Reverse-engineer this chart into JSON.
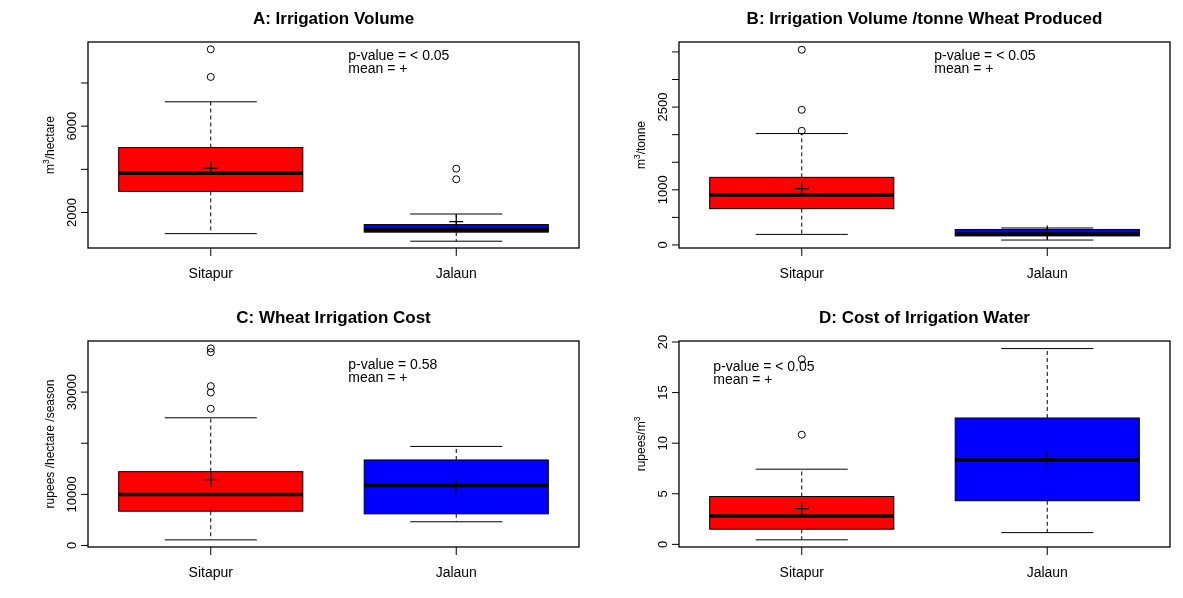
{
  "chart_data": [
    {
      "type": "box",
      "title": "A: Irrigation Volume",
      "ylabel": "m$^{3}$/hectare",
      "categories": [
        "Sitapur",
        "Jalaun"
      ],
      "colors": [
        "#ff0000",
        "#0000ff"
      ],
      "ylim": [
        355,
        9900
      ],
      "yticks": [
        2000,
        {
          "value": 4000,
          "label": null
        },
        6000,
        {
          "value": 8000,
          "label": null
        }
      ],
      "annotations": [
        "p-value = < 0.05",
        "mean = +"
      ],
      "boxes": [
        {
          "low": 1020,
          "q1": 2980,
          "median": 3820,
          "q3": 5010,
          "high": 7130,
          "mean": 4050,
          "outliers": [
            8280,
            9560
          ]
        },
        {
          "low": 670,
          "q1": 1090,
          "median": 1195,
          "q3": 1440,
          "high": 1930,
          "mean": 1580,
          "outliers": [
            3540,
            4030
          ]
        }
      ]
    },
    {
      "type": "box",
      "title": "B: Irrigation Volume /tonne Wheat Produced",
      "ylabel": "m$^{3}$/tonne",
      "categories": [
        "Sitapur",
        "Jalaun"
      ],
      "colors": [
        "#ff0000",
        "#0000ff"
      ],
      "ylim": [
        -55,
        3680
      ],
      "yticks": [
        0,
        {
          "value": 500,
          "label": null
        },
        1000,
        {
          "value": 1500,
          "label": null
        },
        {
          "value": 2000,
          "label": null
        },
        2500,
        {
          "value": 3000,
          "label": null
        },
        {
          "value": 3500,
          "label": null
        }
      ],
      "annotations": [
        "p-value = < 0.05",
        "mean = +"
      ],
      "boxes": [
        {
          "low": 192,
          "q1": 658,
          "median": 904,
          "q3": 1226,
          "high": 2020,
          "mean": 1020,
          "outliers": [
            2070,
            2450,
            3540
          ]
        },
        {
          "low": 89,
          "q1": 164,
          "median": 199,
          "q3": 281,
          "high": 308,
          "mean": 226
        }
      ]
    },
    {
      "type": "box",
      "title": "C: Wheat Irrigation Cost",
      "ylabel": "rupees /hectare /season",
      "categories": [
        "Sitapur",
        "Jalaun"
      ],
      "colors": [
        "#ff0000",
        "#0000ff"
      ],
      "ylim": [
        -295,
        40000
      ],
      "yticks": [
        0,
        10000,
        {
          "value": 20000,
          "label": null
        },
        30000
      ],
      "annotations": [
        "p-value = 0.58",
        "mean = +"
      ],
      "boxes": [
        {
          "low": 1100,
          "q1": 6710,
          "median": 9950,
          "q3": 14440,
          "high": 24980,
          "mean": 12900,
          "outliers": [
            26750,
            29920,
            31170,
            37810,
            38550
          ]
        },
        {
          "low": 4640,
          "q1": 6190,
          "median": 11720,
          "q3": 16730,
          "high": 19380,
          "mean": 11570
        }
      ]
    },
    {
      "type": "box",
      "title": "D: Cost of Irrigation Water",
      "ylabel": "rupees/m$^{3}$",
      "categories": [
        "Sitapur",
        "Jalaun"
      ],
      "colors": [
        "#ff0000",
        "#0000ff"
      ],
      "ylim": [
        -0.26,
        20.1
      ],
      "yticks": [
        0,
        5,
        10,
        15,
        20
      ],
      "annotations": [
        "p-value = < 0.05",
        "mean = +"
      ],
      "boxes": [
        {
          "low": 0.45,
          "q1": 1.5,
          "median": 2.81,
          "q3": 4.73,
          "high": 7.43,
          "mean": 3.53,
          "outliers": [
            10.84,
            18.3
          ]
        },
        {
          "low": 1.16,
          "q1": 4.31,
          "median": 8.33,
          "q3": 12.49,
          "high": 19.35,
          "mean": 8.48
        }
      ]
    }
  ]
}
